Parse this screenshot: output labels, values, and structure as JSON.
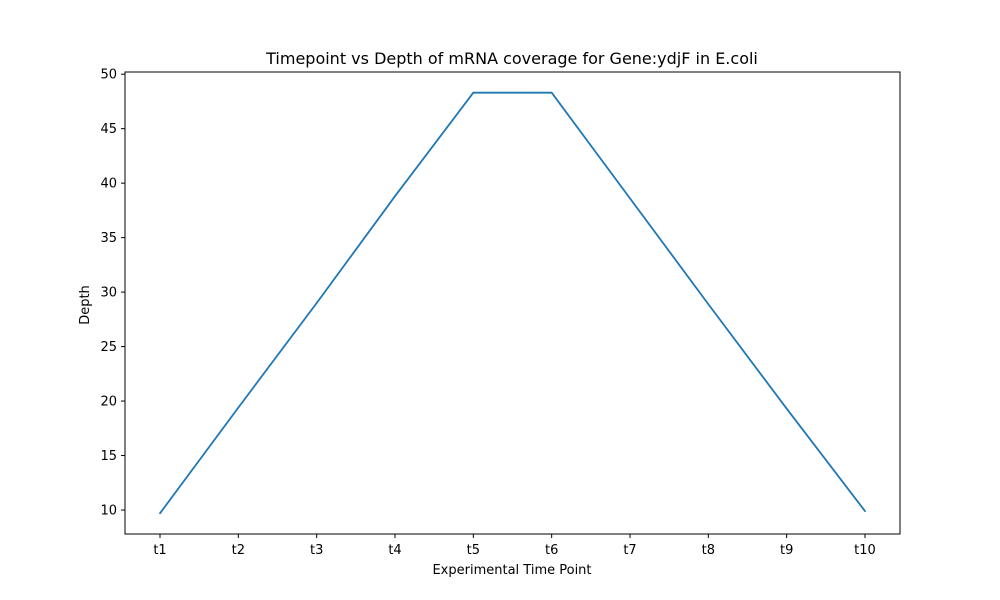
{
  "chart_data": {
    "type": "line",
    "title": "Timepoint vs Depth of mRNA coverage for Gene:ydjF in E.coli",
    "xlabel": "Experimental Time Point",
    "ylabel": "Depth",
    "categories": [
      "t1",
      "t2",
      "t3",
      "t4",
      "t5",
      "t6",
      "t7",
      "t8",
      "t9",
      "t10"
    ],
    "series": [
      {
        "values": [
          9.7,
          19.4,
          29.0,
          38.8,
          48.3,
          48.3,
          38.6,
          28.9,
          19.3,
          9.9
        ],
        "color": "#1f77b4"
      }
    ],
    "yticks": [
      10,
      15,
      20,
      25,
      30,
      35,
      40,
      45,
      50
    ],
    "ylim": [
      7.8,
      50.2
    ],
    "grid": false,
    "legend": "none"
  }
}
